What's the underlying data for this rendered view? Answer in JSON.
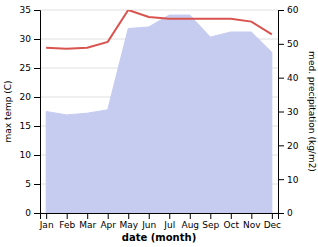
{
  "chart_data": {
    "type": "line",
    "categories": [
      "Jan",
      "Feb",
      "Mar",
      "Apr",
      "May",
      "Jun",
      "Jul",
      "Aug",
      "Sep",
      "Oct",
      "Nov",
      "Dec"
    ],
    "series": [
      {
        "type": "area",
        "axis": "y2",
        "color": "#c5ccf0",
        "values": [
          30.0,
          29.0,
          29.5,
          30.5,
          54.5,
          55.0,
          58.5,
          58.5,
          52.0,
          53.5,
          53.5,
          47.5
        ]
      },
      {
        "type": "line",
        "color": "#d9534f",
        "values": [
          28.5,
          28.3,
          28.5,
          29.5,
          35.0,
          33.8,
          33.5,
          33.5,
          33.5,
          33.5,
          33.0,
          30.8
        ]
      }
    ],
    "xlabel": "date (month)",
    "ylabel": "max temp (C)",
    "y2label": "med. precipitation (kg/m2)",
    "ylim": [
      0,
      35
    ],
    "yticks": [
      0,
      5,
      10,
      15,
      20,
      25,
      30,
      35
    ],
    "y2lim": [
      0,
      60
    ],
    "y2ticks": [
      0,
      10,
      20,
      30,
      40,
      50,
      60
    ],
    "grid": true
  }
}
